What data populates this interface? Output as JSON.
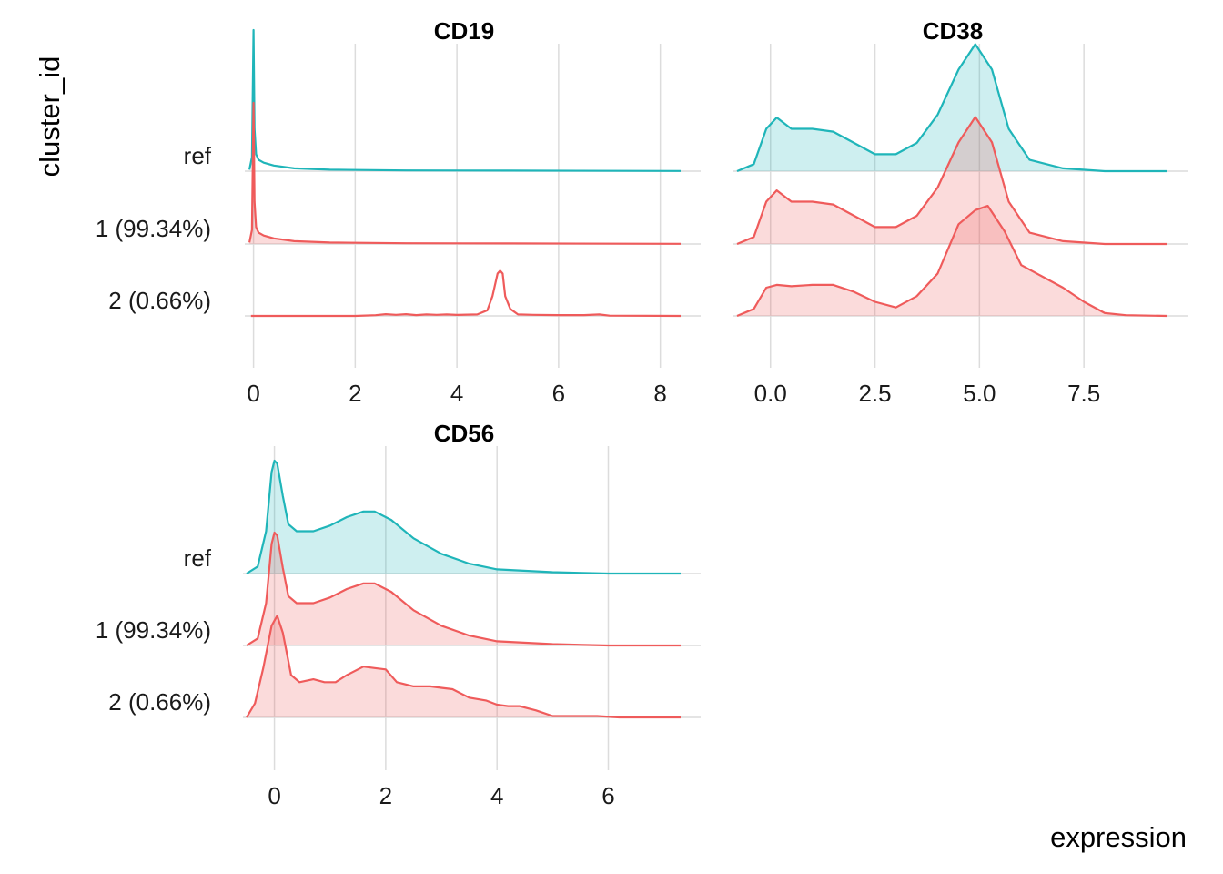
{
  "chart_data": {
    "type": "ridgeline",
    "ylabel": "cluster_id",
    "xlabel": "expression",
    "grid": true,
    "categories": [
      "ref",
      "1 (99.34%)",
      "2 (0.66%)"
    ],
    "colors": {
      "ref": "#1FB5B9",
      "cluster": "#EF5B5B"
    },
    "panels": [
      {
        "title": "CD19",
        "xlim": [
          -0.1,
          8.4
        ],
        "xticks": [
          0,
          2,
          4,
          6,
          8
        ],
        "xtick_labels": [
          "0",
          "2",
          "4",
          "6",
          "8"
        ],
        "series": [
          {
            "name": "ref",
            "fill": false,
            "points": [
              [
                -0.08,
                0.01
              ],
              [
                -0.03,
                0.1
              ],
              [
                0.0,
                1.0
              ],
              [
                0.02,
                0.3
              ],
              [
                0.05,
                0.12
              ],
              [
                0.1,
                0.08
              ],
              [
                0.2,
                0.06
              ],
              [
                0.4,
                0.04
              ],
              [
                0.8,
                0.02
              ],
              [
                1.5,
                0.01
              ],
              [
                3,
                0.005
              ],
              [
                5,
                0.004
              ],
              [
                8.4,
                0.001
              ]
            ]
          },
          {
            "name": "1 (99.34%)",
            "fill": true,
            "points": [
              [
                -0.08,
                0.01
              ],
              [
                -0.03,
                0.1
              ],
              [
                0.0,
                1.0
              ],
              [
                0.02,
                0.3
              ],
              [
                0.05,
                0.12
              ],
              [
                0.1,
                0.08
              ],
              [
                0.2,
                0.06
              ],
              [
                0.4,
                0.04
              ],
              [
                0.8,
                0.02
              ],
              [
                1.5,
                0.01
              ],
              [
                3,
                0.005
              ],
              [
                5,
                0.004
              ],
              [
                8.4,
                0.001
              ]
            ]
          },
          {
            "name": "2 (0.66%)",
            "fill": false,
            "points": [
              [
                -0.05,
                0
              ],
              [
                2.0,
                0
              ],
              [
                2.4,
                0.005
              ],
              [
                2.6,
                0.012
              ],
              [
                2.8,
                0.008
              ],
              [
                3.0,
                0.012
              ],
              [
                3.2,
                0.006
              ],
              [
                3.4,
                0.01
              ],
              [
                3.6,
                0.008
              ],
              [
                3.8,
                0.01
              ],
              [
                4.0,
                0.007
              ],
              [
                4.2,
                0.009
              ],
              [
                4.4,
                0.01
              ],
              [
                4.6,
                0.04
              ],
              [
                4.7,
                0.14
              ],
              [
                4.8,
                0.3
              ],
              [
                4.85,
                0.32
              ],
              [
                4.9,
                0.3
              ],
              [
                4.95,
                0.14
              ],
              [
                5.05,
                0.05
              ],
              [
                5.2,
                0.01
              ],
              [
                5.5,
                0.008
              ],
              [
                6.0,
                0.006
              ],
              [
                6.5,
                0.006
              ],
              [
                6.8,
                0.01
              ],
              [
                7.0,
                0.002
              ],
              [
                8.4,
                0
              ]
            ]
          }
        ]
      },
      {
        "title": "CD38",
        "xlim": [
          -0.8,
          9.5
        ],
        "xticks": [
          0.0,
          2.5,
          5.0,
          7.5
        ],
        "xtick_labels": [
          "0.0",
          "2.5",
          "5.0",
          "7.5"
        ],
        "series": [
          {
            "name": "ref",
            "fill": true,
            "points": [
              [
                -0.8,
                0.0
              ],
              [
                -0.4,
                0.05
              ],
              [
                -0.1,
                0.3
              ],
              [
                0.15,
                0.38
              ],
              [
                0.5,
                0.3
              ],
              [
                1.0,
                0.3
              ],
              [
                1.5,
                0.28
              ],
              [
                2.0,
                0.2
              ],
              [
                2.5,
                0.12
              ],
              [
                3.0,
                0.12
              ],
              [
                3.5,
                0.2
              ],
              [
                4.0,
                0.4
              ],
              [
                4.5,
                0.72
              ],
              [
                4.9,
                0.9
              ],
              [
                5.3,
                0.72
              ],
              [
                5.7,
                0.3
              ],
              [
                6.2,
                0.08
              ],
              [
                7.0,
                0.02
              ],
              [
                8.0,
                0.0
              ],
              [
                9.5,
                0.0
              ]
            ]
          },
          {
            "name": "1 (99.34%)",
            "fill": true,
            "points": [
              [
                -0.8,
                0.0
              ],
              [
                -0.4,
                0.05
              ],
              [
                -0.1,
                0.3
              ],
              [
                0.15,
                0.38
              ],
              [
                0.5,
                0.3
              ],
              [
                1.0,
                0.3
              ],
              [
                1.5,
                0.28
              ],
              [
                2.0,
                0.2
              ],
              [
                2.5,
                0.12
              ],
              [
                3.0,
                0.12
              ],
              [
                3.5,
                0.2
              ],
              [
                4.0,
                0.4
              ],
              [
                4.5,
                0.72
              ],
              [
                4.9,
                0.9
              ],
              [
                5.3,
                0.72
              ],
              [
                5.7,
                0.3
              ],
              [
                6.2,
                0.08
              ],
              [
                7.0,
                0.02
              ],
              [
                8.0,
                0.0
              ],
              [
                9.5,
                0.0
              ]
            ]
          },
          {
            "name": "2 (0.66%)",
            "fill": true,
            "points": [
              [
                -0.8,
                0.0
              ],
              [
                -0.4,
                0.05
              ],
              [
                -0.1,
                0.2
              ],
              [
                0.15,
                0.22
              ],
              [
                0.5,
                0.21
              ],
              [
                1.0,
                0.22
              ],
              [
                1.5,
                0.22
              ],
              [
                2.0,
                0.17
              ],
              [
                2.5,
                0.1
              ],
              [
                3.0,
                0.06
              ],
              [
                3.5,
                0.14
              ],
              [
                4.0,
                0.3
              ],
              [
                4.5,
                0.65
              ],
              [
                4.9,
                0.75
              ],
              [
                5.2,
                0.78
              ],
              [
                5.6,
                0.6
              ],
              [
                6.0,
                0.36
              ],
              [
                6.5,
                0.28
              ],
              [
                7.0,
                0.2
              ],
              [
                7.5,
                0.1
              ],
              [
                8.0,
                0.02
              ],
              [
                8.5,
                0.005
              ],
              [
                9.5,
                0.0
              ]
            ]
          }
        ]
      },
      {
        "title": "CD56",
        "xlim": [
          -0.5,
          7.3
        ],
        "xticks": [
          0,
          2,
          4,
          6
        ],
        "xtick_labels": [
          "0",
          "2",
          "4",
          "6"
        ],
        "series": [
          {
            "name": "ref",
            "fill": true,
            "points": [
              [
                -0.5,
                0.0
              ],
              [
                -0.3,
                0.05
              ],
              [
                -0.15,
                0.3
              ],
              [
                -0.05,
                0.72
              ],
              [
                0.0,
                0.8
              ],
              [
                0.05,
                0.78
              ],
              [
                0.15,
                0.55
              ],
              [
                0.25,
                0.35
              ],
              [
                0.4,
                0.3
              ],
              [
                0.7,
                0.3
              ],
              [
                1.0,
                0.34
              ],
              [
                1.3,
                0.4
              ],
              [
                1.6,
                0.44
              ],
              [
                1.8,
                0.44
              ],
              [
                2.1,
                0.38
              ],
              [
                2.5,
                0.25
              ],
              [
                3.0,
                0.14
              ],
              [
                3.5,
                0.07
              ],
              [
                4.0,
                0.03
              ],
              [
                5.0,
                0.01
              ],
              [
                6.0,
                0.0
              ],
              [
                7.3,
                0.0
              ]
            ]
          },
          {
            "name": "1 (99.34%)",
            "fill": true,
            "points": [
              [
                -0.5,
                0.0
              ],
              [
                -0.3,
                0.05
              ],
              [
                -0.15,
                0.3
              ],
              [
                -0.05,
                0.72
              ],
              [
                0.0,
                0.8
              ],
              [
                0.05,
                0.78
              ],
              [
                0.15,
                0.55
              ],
              [
                0.25,
                0.35
              ],
              [
                0.4,
                0.3
              ],
              [
                0.7,
                0.3
              ],
              [
                1.0,
                0.34
              ],
              [
                1.3,
                0.4
              ],
              [
                1.6,
                0.44
              ],
              [
                1.8,
                0.44
              ],
              [
                2.1,
                0.38
              ],
              [
                2.5,
                0.25
              ],
              [
                3.0,
                0.14
              ],
              [
                3.5,
                0.07
              ],
              [
                4.0,
                0.03
              ],
              [
                5.0,
                0.01
              ],
              [
                6.0,
                0.0
              ],
              [
                7.3,
                0.0
              ]
            ]
          },
          {
            "name": "2 (0.66%)",
            "fill": true,
            "points": [
              [
                -0.5,
                0.0
              ],
              [
                -0.35,
                0.1
              ],
              [
                -0.2,
                0.35
              ],
              [
                -0.05,
                0.65
              ],
              [
                0.05,
                0.72
              ],
              [
                0.15,
                0.6
              ],
              [
                0.3,
                0.3
              ],
              [
                0.45,
                0.25
              ],
              [
                0.7,
                0.27
              ],
              [
                0.9,
                0.25
              ],
              [
                1.1,
                0.25
              ],
              [
                1.3,
                0.3
              ],
              [
                1.6,
                0.36
              ],
              [
                1.8,
                0.35
              ],
              [
                2.0,
                0.34
              ],
              [
                2.2,
                0.25
              ],
              [
                2.5,
                0.22
              ],
              [
                2.8,
                0.22
              ],
              [
                3.0,
                0.21
              ],
              [
                3.2,
                0.2
              ],
              [
                3.5,
                0.14
              ],
              [
                3.8,
                0.12
              ],
              [
                4.0,
                0.09
              ],
              [
                4.2,
                0.08
              ],
              [
                4.4,
                0.08
              ],
              [
                4.7,
                0.05
              ],
              [
                5.0,
                0.01
              ],
              [
                5.5,
                0.01
              ],
              [
                5.8,
                0.01
              ],
              [
                6.2,
                0.0
              ],
              [
                7.3,
                0.0
              ]
            ]
          }
        ]
      }
    ]
  }
}
